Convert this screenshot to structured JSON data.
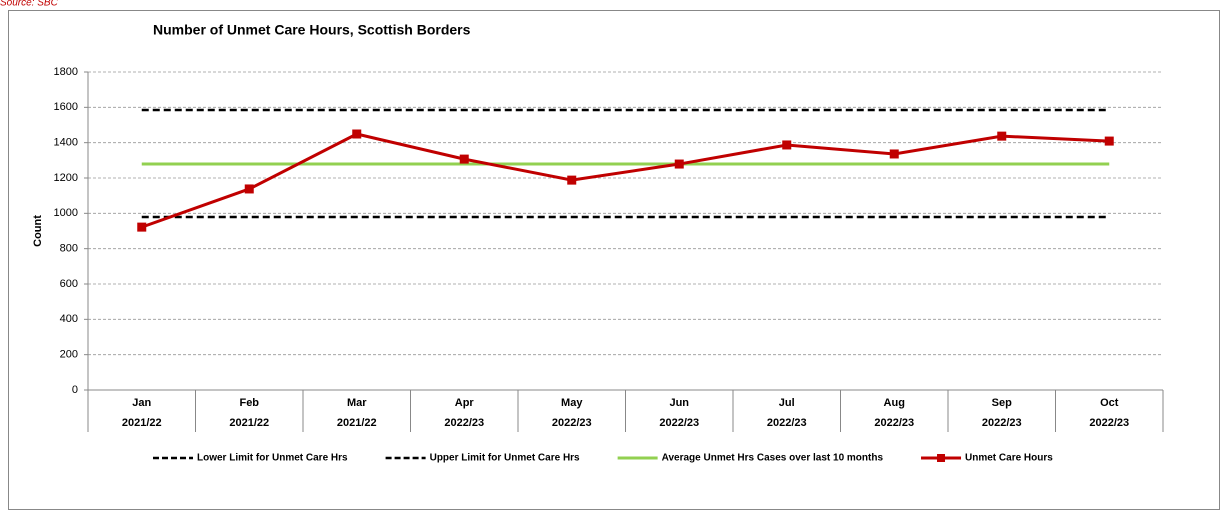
{
  "chart_data": {
    "type": "line",
    "source": "Source: SBC",
    "title": "Number of Unmet Care Hours, Scottish Borders",
    "y_label": "Count",
    "categories": [
      "Jan",
      "Feb",
      "Mar",
      "Apr",
      "May",
      "Jun",
      "Jul",
      "Aug",
      "Sep",
      "Oct"
    ],
    "category_groups": [
      "2021/22",
      "2021/22",
      "2021/22",
      "2022/23",
      "2022/23",
      "2022/23",
      "2022/23",
      "2022/23",
      "2022/23",
      "2022/23"
    ],
    "ylim": [
      0,
      1800
    ],
    "yticks": [
      0,
      200,
      400,
      600,
      800,
      1000,
      1200,
      1400,
      1600,
      1800
    ],
    "grid": true,
    "legend": "bottom",
    "series": [
      {
        "name": "Lower Limit for Unmet Care Hrs",
        "color": "#000000",
        "dashed": true,
        "values": [
          979,
          979,
          979,
          979,
          979,
          979,
          979,
          979,
          979,
          979
        ]
      },
      {
        "name": "Upper Limit for Unmet Care Hrs",
        "color": "#000000",
        "dashed": true,
        "values": [
          1585,
          1585,
          1585,
          1585,
          1585,
          1585,
          1585,
          1585,
          1585,
          1585
        ]
      },
      {
        "name": "Average Unmet Hrs Cases over last 10 months",
        "color": "#92d050",
        "dashed": false,
        "values": [
          1279,
          1279,
          1279,
          1279,
          1279,
          1279,
          1279,
          1279,
          1279,
          1279
        ]
      },
      {
        "name": "Unmet Care Hours",
        "color": "#c00000",
        "dashed": false,
        "marker": "square",
        "values": [
          922,
          1138,
          1449,
          1307,
          1188,
          1279,
          1387,
          1336,
          1437,
          1409
        ]
      }
    ]
  }
}
